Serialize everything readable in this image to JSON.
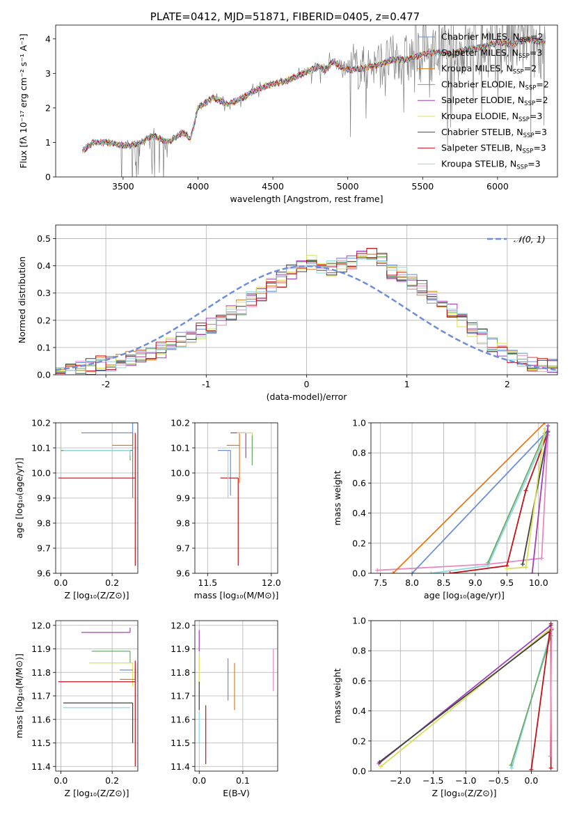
{
  "figure_title": "PLATE=0412, MJD=51871, FIBERID=0405, z=0.477",
  "chart_data": [
    {
      "id": "spectrum",
      "type": "line",
      "title": "PLATE=0412, MJD=51871, FIBERID=0405, z=0.477",
      "xlabel": "wavelength [Angstrom, rest frame]",
      "ylabel": "Flux [fλ 10⁻¹⁷ erg cm⁻² s⁻¹ A⁻¹]",
      "xlim": [
        3050,
        6400
      ],
      "ylim": [
        0,
        4.4
      ],
      "xticks": [
        3500,
        4000,
        4500,
        5000,
        5500,
        6000
      ],
      "yticks": [
        0,
        1,
        2,
        3,
        4
      ],
      "grid": false,
      "legend_position": "upper-right",
      "data_color": "#808080",
      "model_x": [
        3230,
        3300,
        3400,
        3500,
        3600,
        3700,
        3800,
        3900,
        3950,
        4000,
        4100,
        4200,
        4300,
        4400,
        4500,
        4600,
        4700,
        4800,
        4850,
        4900,
        4950,
        5000,
        5100,
        5200,
        5300,
        5400,
        5500,
        5600,
        5700,
        5800,
        5900,
        6000,
        6100,
        6200,
        6300
      ],
      "model_y": [
        0.75,
        1.0,
        1.0,
        0.9,
        0.95,
        1.2,
        1.0,
        1.3,
        1.1,
        2.0,
        2.3,
        2.1,
        2.3,
        2.55,
        2.7,
        2.8,
        3.0,
        3.2,
        3.1,
        3.35,
        3.2,
        3.1,
        3.15,
        3.25,
        3.4,
        3.4,
        3.55,
        3.6,
        3.55,
        3.7,
        3.75,
        3.9,
        3.85,
        4.0,
        3.9
      ],
      "series": [
        {
          "name": "Chabrier MILES, N$_{SSP}$=2",
          "label_main": "Chabrier MILES, N",
          "label_sub": "SSP",
          "label_tail": "=2",
          "color": "#6b8fdc"
        },
        {
          "name": "Salpeter MILES, N$_{SSP}$=3",
          "label_main": "Salpeter MILES, N",
          "label_sub": "SSP",
          "label_tail": "=3",
          "color": "#e889bf"
        },
        {
          "name": "Kroupa MILES, N$_{SSP}$=2",
          "label_main": "Kroupa MILES, N",
          "label_sub": "SSP",
          "label_tail": "=2",
          "color": "#e07b1f"
        },
        {
          "name": "Chabrier ELODIE, N$_{SSP}$=2",
          "label_main": "Chabrier ELODIE, N",
          "label_sub": "SSP",
          "label_tail": "=2",
          "color": "#6bab6b"
        },
        {
          "name": "Salpeter ELODIE, N$_{SSP}$=2",
          "label_main": "Salpeter ELODIE, N",
          "label_sub": "SSP",
          "label_tail": "=2",
          "color": "#a23fb8"
        },
        {
          "name": "Kroupa ELODIE, N$_{SSP}$=3",
          "label_main": "Kroupa ELODIE, N",
          "label_sub": "SSP",
          "label_tail": "=3",
          "color": "#d8e05a"
        },
        {
          "name": "Chabrier STELIB, N$_{SSP}$=3",
          "label_main": "Chabrier STELIB, N",
          "label_sub": "SSP",
          "label_tail": "=3",
          "color": "#404040"
        },
        {
          "name": "Salpeter STELIB, N$_{SSP}$=3",
          "label_main": "Salpeter STELIB, N",
          "label_sub": "SSP",
          "label_tail": "=3",
          "color": "#c0101a"
        },
        {
          "name": "Kroupa STELIB, N$_{SSP}$=3",
          "label_main": "Kroupa STELIB, N",
          "label_sub": "SSP",
          "label_tail": "=3",
          "color": "#8fd8e0"
        }
      ]
    },
    {
      "id": "residuals",
      "type": "histogram",
      "xlabel": "(data-model)/error",
      "ylabel": "Normed distribution",
      "xlim": [
        -2.5,
        2.5
      ],
      "ylim": [
        0,
        0.55
      ],
      "xticks": [
        -2,
        -1,
        0,
        1,
        2
      ],
      "yticks": [
        0.0,
        0.1,
        0.2,
        0.3,
        0.4,
        0.5
      ],
      "grid": true,
      "legend": "$\\mathcal{N}(0,1)$",
      "legend_position": "upper-right",
      "bin_width": 0.1,
      "bin_start": -2.5,
      "base_density": [
        0.01,
        0.02,
        0.03,
        0.03,
        0.04,
        0.04,
        0.05,
        0.06,
        0.07,
        0.08,
        0.09,
        0.11,
        0.13,
        0.14,
        0.16,
        0.18,
        0.2,
        0.23,
        0.25,
        0.28,
        0.3,
        0.33,
        0.35,
        0.38,
        0.4,
        0.41,
        0.4,
        0.39,
        0.4,
        0.41,
        0.43,
        0.44,
        0.42,
        0.38,
        0.37,
        0.34,
        0.32,
        0.28,
        0.26,
        0.23,
        0.2,
        0.17,
        0.14,
        0.11,
        0.09,
        0.07,
        0.05,
        0.04,
        0.03,
        0.03
      ],
      "gaussian_color": "#6b8fdc"
    },
    {
      "id": "age_vs_Z",
      "type": "errorbar",
      "xlabel": "Z [log₁₀(Z/Z⊙)]",
      "ylabel": "age  [log₁₀(age/yr)]",
      "xlim": [
        -0.02,
        0.3
      ],
      "ylim": [
        9.6,
        10.2
      ],
      "xticks": [
        0.0,
        0.2
      ],
      "xtick_labels": [
        "0.0",
        "0.2"
      ],
      "yticks": [
        9.6,
        9.7,
        9.8,
        9.9,
        10.0,
        10.1,
        10.2
      ],
      "ytick_labels": [
        "9.6",
        "9.7",
        "9.8",
        "9.9",
        "10.0",
        "10.1",
        "10.2"
      ],
      "grid": true,
      "points": [
        {
          "x": 0.28,
          "y": 10.16,
          "xerr": 0.2,
          "yerr": [
            0.0,
            0.04
          ],
          "color": "#6b8fdc"
        },
        {
          "x": 0.28,
          "y": 10.11,
          "xerr": 0.08,
          "yerr": [
            0.0,
            0.05
          ],
          "color": "#e07b1f"
        },
        {
          "x": 0.28,
          "y": 10.09,
          "xerr": 0.28,
          "yerr": [
            0.19,
            0.07
          ],
          "color": "#808080"
        },
        {
          "x": 0.27,
          "y": 10.09,
          "xerr": 0.27,
          "yerr": [
            0.04,
            0.0
          ],
          "color": "#6bab6b"
        },
        {
          "x": 0.28,
          "y": 10.16,
          "xerr": 0.0,
          "yerr": [
            0.0,
            0.0
          ],
          "color": "#404040"
        },
        {
          "x": 0.29,
          "y": 9.98,
          "xerr": 0.3,
          "yerr": [
            0.35,
            0.18
          ],
          "color": "#c0101a"
        },
        {
          "x": 0.27,
          "y": 10.09,
          "xerr": 0.26,
          "yerr": [
            0.02,
            0.0
          ],
          "color": "#8fd8e0"
        }
      ]
    },
    {
      "id": "age_vs_mass",
      "type": "errorbar",
      "xlabel": "mass [log₁₀(M/M⊙)]",
      "ylabel": "",
      "xlim": [
        11.4,
        12.05
      ],
      "ylim": [
        9.6,
        10.2
      ],
      "xticks": [
        11.5,
        12.0
      ],
      "xtick_labels": [
        "11.5",
        "12.0"
      ],
      "yticks": [
        9.6,
        9.7,
        9.8,
        9.9,
        10.0,
        10.1,
        10.2
      ],
      "ytick_labels": [
        "9.6",
        "9.7",
        "9.8",
        "9.9",
        "10.0",
        "10.1",
        "10.2"
      ],
      "grid": true,
      "points": [
        {
          "x": 11.8,
          "y": 10.16,
          "xerr": 0.12,
          "yerr": [
            0.1,
            0.0
          ],
          "color": "#a23fb8"
        },
        {
          "x": 11.75,
          "y": 10.11,
          "xerr": 0.1,
          "yerr": [
            0.15,
            0.05
          ],
          "color": "#e07b1f"
        },
        {
          "x": 11.68,
          "y": 10.09,
          "xerr": 0.1,
          "yerr": [
            0.18,
            0.0
          ],
          "color": "#6b8fdc"
        },
        {
          "x": 11.74,
          "y": 9.98,
          "xerr": 0.14,
          "yerr": [
            0.35,
            0.0
          ],
          "color": "#c0101a"
        },
        {
          "x": 11.85,
          "y": 10.16,
          "xerr": 0.12,
          "yerr": [
            0.12,
            0.0
          ],
          "color": "#d8e05a"
        },
        {
          "x": 11.85,
          "y": 10.11,
          "xerr": 0.0,
          "yerr": [
            0.08,
            0.04
          ],
          "color": "#6bab6b"
        },
        {
          "x": 11.66,
          "y": 10.09,
          "xerr": 0.0,
          "yerr": [
            0.19,
            0.0
          ],
          "color": "#8fd8e0"
        }
      ]
    },
    {
      "id": "weight_vs_age",
      "type": "line",
      "xlabel": "age  [log₁₀(age/yr)]",
      "ylabel": "mass weight",
      "xlim": [
        7.35,
        10.3
      ],
      "ylim": [
        0,
        1.0
      ],
      "xticks": [
        7.5,
        8.0,
        8.5,
        9.0,
        9.5,
        10.0
      ],
      "xtick_labels": [
        "7.5",
        "8.0",
        "8.5",
        "9.0",
        "9.5",
        "10.0"
      ],
      "yticks": [
        0,
        0.2,
        0.4,
        0.6,
        0.8,
        1.0
      ],
      "ytick_labels": [
        "0.0",
        "0.2",
        "0.4",
        "0.6",
        "0.8",
        "1.0"
      ],
      "grid": true,
      "series": [
        {
          "color": "#e889bf",
          "x": [
            7.45,
            9.2,
            10.05,
            10.15
          ],
          "y": [
            0.02,
            0.06,
            0.1,
            0.92
          ]
        },
        {
          "color": "#e07b1f",
          "x": [
            7.7,
            10.1
          ],
          "y": [
            0.0,
            1.0
          ]
        },
        {
          "color": "#6b8fdc",
          "x": [
            8.0,
            10.15
          ],
          "y": [
            0.0,
            0.95
          ]
        },
        {
          "color": "#8fd8e0",
          "x": [
            8.3,
            9.2,
            10.15
          ],
          "y": [
            0.0,
            0.05,
            0.95
          ]
        },
        {
          "color": "#6bab6b",
          "x": [
            9.2,
            10.1
          ],
          "y": [
            0.07,
            0.93
          ]
        },
        {
          "color": "#c0101a",
          "x": [
            8.6,
            9.5,
            9.8,
            10.15
          ],
          "y": [
            0.0,
            0.05,
            0.55,
            0.94
          ]
        },
        {
          "color": "#404040",
          "x": [
            9.75,
            10.15
          ],
          "y": [
            0.06,
            0.94
          ]
        },
        {
          "color": "#d8e05a",
          "x": [
            9.5,
            9.8,
            10.1
          ],
          "y": [
            0.03,
            0.04,
            0.96
          ]
        },
        {
          "color": "#a23fb8",
          "x": [
            9.9,
            10.15
          ],
          "y": [
            0.0,
            0.98
          ]
        }
      ]
    },
    {
      "id": "mass_vs_Z",
      "type": "errorbar",
      "xlabel": "Z [log₁₀(Z/Z⊙)]",
      "ylabel": "mass [log₁₀(M/M⊙)]",
      "xlim": [
        -0.02,
        0.3
      ],
      "ylim": [
        11.38,
        12.02
      ],
      "xticks": [
        0.0,
        0.2
      ],
      "xtick_labels": [
        "0.0",
        "0.2"
      ],
      "yticks": [
        11.4,
        11.5,
        11.6,
        11.7,
        11.8,
        11.9,
        12.0
      ],
      "ytick_labels": [
        "11.4",
        "11.5",
        "11.6",
        "11.7",
        "11.8",
        "11.9",
        "12.0"
      ],
      "grid": true,
      "points": [
        {
          "x": 0.27,
          "y": 11.97,
          "xerr": 0.19,
          "yerr": [
            0.0,
            0.02
          ],
          "color": "#a23fb8"
        },
        {
          "x": 0.27,
          "y": 11.89,
          "xerr": 0.15,
          "yerr": [
            0.05,
            0.0
          ],
          "color": "#6bab6b"
        },
        {
          "x": 0.28,
          "y": 11.84,
          "xerr": 0.17,
          "yerr": [
            0.1,
            0.0
          ],
          "color": "#d8e05a"
        },
        {
          "x": 0.28,
          "y": 11.81,
          "xerr": 0.05,
          "yerr": [
            0.0,
            0.0
          ],
          "color": "#6b8fdc"
        },
        {
          "x": 0.29,
          "y": 11.77,
          "xerr": 0.06,
          "yerr": [
            0.0,
            0.05
          ],
          "color": "#e07b1f"
        },
        {
          "x": 0.29,
          "y": 11.76,
          "xerr": 0.3,
          "yerr": [
            0.36,
            0.09
          ],
          "color": "#c0101a"
        },
        {
          "x": 0.28,
          "y": 11.67,
          "xerr": 0.27,
          "yerr": [
            0.17,
            0.0
          ],
          "color": "#404040"
        },
        {
          "x": 0.27,
          "y": 11.65,
          "xerr": 0.26,
          "yerr": [
            0.0,
            0.0
          ],
          "color": "#8fd8e0"
        },
        {
          "x": 0.3,
          "y": 11.81,
          "xerr": 0.0,
          "yerr": [
            0.05,
            0.03
          ],
          "color": "#e889bf"
        }
      ]
    },
    {
      "id": "mass_vs_ebv",
      "type": "errorbar",
      "xlabel": "E(B-V)",
      "ylabel": "",
      "xlim": [
        -0.01,
        0.18
      ],
      "ylim": [
        11.38,
        12.02
      ],
      "xticks": [
        0.0,
        0.1
      ],
      "xtick_labels": [
        "0.0",
        "0.1"
      ],
      "yticks": [
        11.4,
        11.5,
        11.6,
        11.7,
        11.8,
        11.9,
        12.0
      ],
      "ytick_labels": [
        "11.4",
        "11.5",
        "11.6",
        "11.7",
        "11.8",
        "11.9",
        "12.0"
      ],
      "grid": true,
      "points": [
        {
          "x": 0.0,
          "y": 11.92,
          "xerr": 0.0,
          "yerr": [
            0.03,
            0.06
          ],
          "color": "#a23fb8"
        },
        {
          "x": 0.0,
          "y": 11.84,
          "xerr": 0.0,
          "yerr": [
            0.09,
            0.03
          ],
          "color": "#d8e05a"
        },
        {
          "x": 0.0,
          "y": 11.7,
          "xerr": 0.0,
          "yerr": [
            0.06,
            0.06
          ],
          "color": "#404040"
        },
        {
          "x": 0.0,
          "y": 11.58,
          "xerr": 0.0,
          "yerr": [
            0.08,
            0.05
          ],
          "color": "#8fd8e0"
        },
        {
          "x": 0.015,
          "y": 11.63,
          "xerr": 0.0,
          "yerr": [
            0.22,
            0.03
          ],
          "color": "#c0101a"
        },
        {
          "x": 0.066,
          "y": 11.77,
          "xerr": 0.0,
          "yerr": [
            0.09,
            0.09
          ],
          "color": "#6b8fdc"
        },
        {
          "x": 0.081,
          "y": 11.74,
          "xerr": 0.0,
          "yerr": [
            0.1,
            0.1
          ],
          "color": "#e07b1f"
        },
        {
          "x": 0.17,
          "y": 11.81,
          "xerr": 0.0,
          "yerr": [
            0.09,
            0.09
          ],
          "color": "#e889bf"
        }
      ]
    },
    {
      "id": "weight_vs_Z",
      "type": "line",
      "xlabel": "Z [log₁₀(Z/Z⊙)]",
      "ylabel": "mass weight",
      "xlim": [
        -2.45,
        0.4
      ],
      "ylim": [
        0,
        1.0
      ],
      "xticks": [
        -2.0,
        -1.5,
        -1.0,
        -0.5,
        0.0
      ],
      "xtick_labels": [
        "−2.0",
        "−1.5",
        "−1.0",
        "−0.5",
        "0.0"
      ],
      "yticks": [
        0,
        0.2,
        0.4,
        0.6,
        0.8,
        1.0
      ],
      "ytick_labels": [
        "0.0",
        "0.2",
        "0.4",
        "0.6",
        "0.8",
        "1.0"
      ],
      "grid": true,
      "series": [
        {
          "color": "#d8e05a",
          "x": [
            -2.3,
            0.3
          ],
          "y": [
            0.03,
            0.95
          ]
        },
        {
          "color": "#a23fb8",
          "x": [
            -2.33,
            0.3
          ],
          "y": [
            0.05,
            0.97
          ]
        },
        {
          "color": "#404040",
          "x": [
            -2.32,
            0.31
          ],
          "y": [
            0.06,
            0.94
          ]
        },
        {
          "color": "#8fd8e0",
          "x": [
            -0.3,
            0.3
          ],
          "y": [
            0.02,
            0.93
          ]
        },
        {
          "color": "#6bab6b",
          "x": [
            -0.31,
            0.3
          ],
          "y": [
            0.04,
            0.9
          ]
        },
        {
          "color": "#c0101a",
          "x": [
            0.0,
            0.28
          ],
          "y": [
            0.01,
            0.92
          ]
        },
        {
          "color": "#c0101a",
          "x": [
            0.3,
            0.3
          ],
          "y": [
            0.02,
            0.98
          ]
        },
        {
          "color": "#e889bf",
          "x": [
            0.29,
            0.31
          ],
          "y": [
            0.1,
            0.95
          ]
        }
      ]
    }
  ]
}
